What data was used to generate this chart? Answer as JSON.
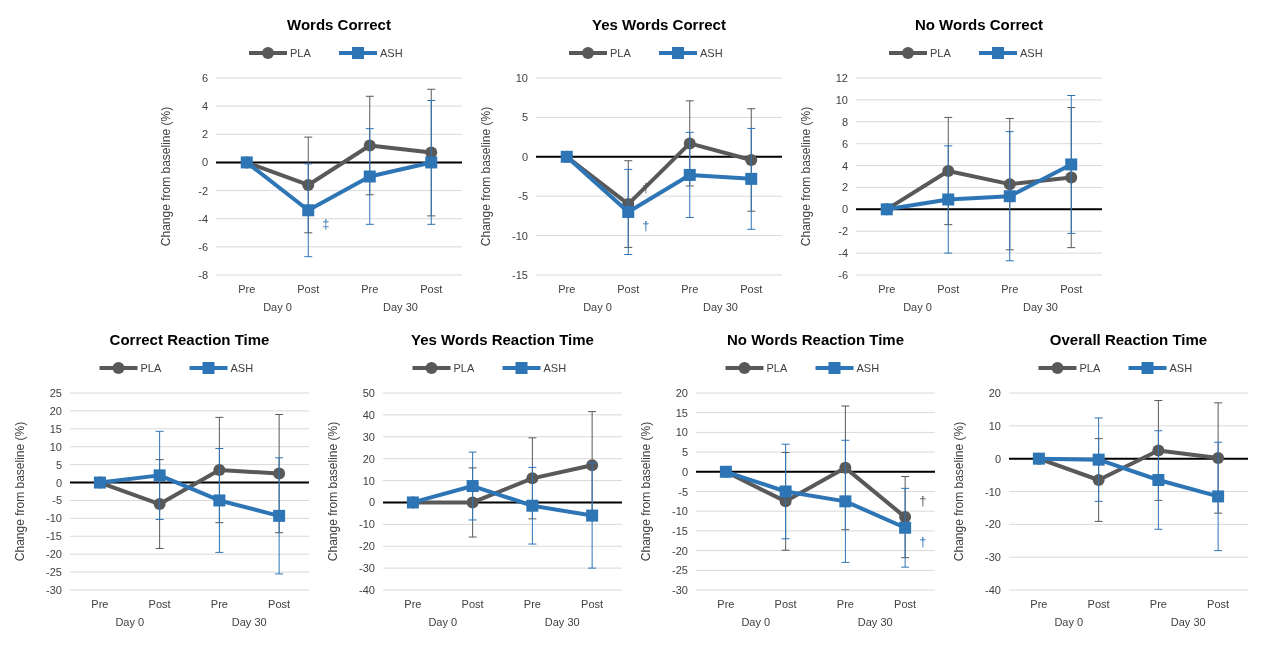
{
  "chart_data": [
    {
      "type": "line",
      "title": "Words Correct",
      "ylabel": "Change from baseline (%)",
      "categories": [
        "Pre",
        "Post",
        "Pre",
        "Post"
      ],
      "annotations": [
        "Day 0",
        "Day 30"
      ],
      "ylim": [
        -8,
        6
      ],
      "yticks": [
        -8,
        -6,
        -4,
        -2,
        0,
        2,
        4,
        6
      ],
      "grid": "y",
      "legend": "top",
      "series": [
        {
          "name": "PLA",
          "color": "#595959",
          "marker": "circle",
          "values": [
            0,
            -1.6,
            1.2,
            0.7
          ],
          "errors": [
            null,
            3.4,
            3.5,
            4.5
          ]
        },
        {
          "name": "ASH",
          "color": "#2e75b6",
          "marker": "square",
          "values": [
            0,
            -3.4,
            -1.0,
            0.0
          ],
          "errors": [
            null,
            3.3,
            3.4,
            4.4
          ],
          "value_labels": [
            null,
            "‡",
            null,
            null
          ]
        }
      ]
    },
    {
      "type": "line",
      "title": "Yes Words Correct",
      "ylabel": "Change from baseline (%)",
      "categories": [
        "Pre",
        "Post",
        "Pre",
        "Post"
      ],
      "annotations": [
        "Day 0",
        "Day 30"
      ],
      "ylim": [
        -15,
        10
      ],
      "yticks": [
        -15,
        -10,
        -5,
        0,
        5,
        10
      ],
      "grid": "y",
      "legend": "top",
      "series": [
        {
          "name": "PLA",
          "color": "#595959",
          "marker": "circle",
          "values": [
            0,
            -6.0,
            1.7,
            -0.4
          ],
          "errors": [
            null,
            5.5,
            5.4,
            6.5
          ],
          "value_labels": [
            null,
            "†",
            null,
            null
          ]
        },
        {
          "name": "ASH",
          "color": "#2e75b6",
          "marker": "square",
          "values": [
            0,
            -7.0,
            -2.3,
            -2.8
          ],
          "errors": [
            null,
            5.4,
            5.4,
            6.4
          ],
          "value_labels": [
            null,
            "†",
            null,
            null
          ]
        }
      ]
    },
    {
      "type": "line",
      "title": "No Words Correct",
      "ylabel": "Change from baseline (%)",
      "categories": [
        "Pre",
        "Post",
        "Pre",
        "Post"
      ],
      "annotations": [
        "Day 0",
        "Day 30"
      ],
      "ylim": [
        -6,
        12
      ],
      "yticks": [
        -6,
        -4,
        -2,
        0,
        2,
        4,
        6,
        8,
        10,
        12
      ],
      "grid": "y",
      "legend": "top",
      "series": [
        {
          "name": "PLA",
          "color": "#595959",
          "marker": "circle",
          "values": [
            0,
            3.5,
            2.3,
            2.9
          ],
          "errors": [
            null,
            4.9,
            6.0,
            6.4
          ]
        },
        {
          "name": "ASH",
          "color": "#2e75b6",
          "marker": "square",
          "values": [
            0,
            0.9,
            1.2,
            4.1
          ],
          "errors": [
            null,
            4.9,
            5.9,
            6.3
          ]
        }
      ]
    },
    {
      "type": "line",
      "title": "Correct Reaction Time",
      "ylabel": "Change from baseline (%)",
      "categories": [
        "Pre",
        "Post",
        "Pre",
        "Post"
      ],
      "annotations": [
        "Day 0",
        "Day 30"
      ],
      "ylim": [
        -30,
        25
      ],
      "yticks": [
        -30,
        -25,
        -20,
        -15,
        -10,
        -5,
        0,
        5,
        10,
        15,
        20,
        25
      ],
      "grid": "y",
      "legend": "top",
      "series": [
        {
          "name": "PLA",
          "color": "#595959",
          "marker": "circle",
          "values": [
            0,
            -6,
            3.5,
            2.5
          ],
          "errors": [
            null,
            12.4,
            14.7,
            16.5
          ]
        },
        {
          "name": "ASH",
          "color": "#2e75b6",
          "marker": "square",
          "values": [
            0,
            2,
            -5,
            -9.3
          ],
          "errors": [
            null,
            12.3,
            14.5,
            16.2
          ]
        }
      ]
    },
    {
      "type": "line",
      "title": "Yes Words Reaction Time",
      "ylabel": "Change from baseline (%)",
      "categories": [
        "Pre",
        "Post",
        "Pre",
        "Post"
      ],
      "annotations": [
        "Day 0",
        "Day 30"
      ],
      "ylim": [
        -40,
        50
      ],
      "yticks": [
        -40,
        -30,
        -20,
        -10,
        0,
        10,
        20,
        30,
        40,
        50
      ],
      "grid": "y",
      "legend": "top",
      "series": [
        {
          "name": "PLA",
          "color": "#595959",
          "marker": "circle",
          "values": [
            0,
            0,
            11,
            17
          ],
          "errors": [
            null,
            15.8,
            18.5,
            24.5
          ]
        },
        {
          "name": "ASH",
          "color": "#2e75b6",
          "marker": "square",
          "values": [
            0,
            7.5,
            -1.5,
            -6
          ],
          "errors": [
            null,
            15.5,
            17.5,
            24
          ]
        }
      ]
    },
    {
      "type": "line",
      "title": "No Words Reaction Time",
      "ylabel": "Change from baseline (%)",
      "categories": [
        "Pre",
        "Post",
        "Pre",
        "Post"
      ],
      "annotations": [
        "Day 0",
        "Day 30"
      ],
      "ylim": [
        -30,
        20
      ],
      "yticks": [
        -30,
        -25,
        -20,
        -15,
        -10,
        -5,
        0,
        5,
        10,
        15,
        20
      ],
      "grid": "y",
      "legend": "top",
      "series": [
        {
          "name": "PLA",
          "color": "#595959",
          "marker": "circle",
          "values": [
            0,
            -7.5,
            1,
            -11.5
          ],
          "errors": [
            null,
            12.4,
            15.7,
            10.3
          ],
          "value_labels": [
            null,
            null,
            null,
            "†"
          ]
        },
        {
          "name": "ASH",
          "color": "#2e75b6",
          "marker": "square",
          "values": [
            0,
            -5,
            -7.5,
            -14.2
          ],
          "errors": [
            null,
            12,
            15.5,
            10
          ],
          "value_labels": [
            null,
            null,
            null,
            "†"
          ]
        }
      ]
    },
    {
      "type": "line",
      "title": "Overall Reaction Time",
      "ylabel": "Change from baseline (%)",
      "categories": [
        "Pre",
        "Post",
        "Pre",
        "Post"
      ],
      "annotations": [
        "Day 0",
        "Day 30"
      ],
      "ylim": [
        -40,
        20
      ],
      "yticks": [
        -40,
        -30,
        -20,
        -10,
        0,
        10,
        20
      ],
      "grid": "y",
      "legend": "top",
      "series": [
        {
          "name": "PLA",
          "color": "#595959",
          "marker": "circle",
          "values": [
            0,
            -6.5,
            2.5,
            0.2
          ],
          "errors": [
            null,
            12.6,
            15.2,
            16.8
          ]
        },
        {
          "name": "ASH",
          "color": "#2e75b6",
          "marker": "square",
          "values": [
            0,
            -0.3,
            -6.5,
            -11.5
          ],
          "errors": [
            null,
            12.7,
            15,
            16.5
          ]
        }
      ]
    }
  ]
}
